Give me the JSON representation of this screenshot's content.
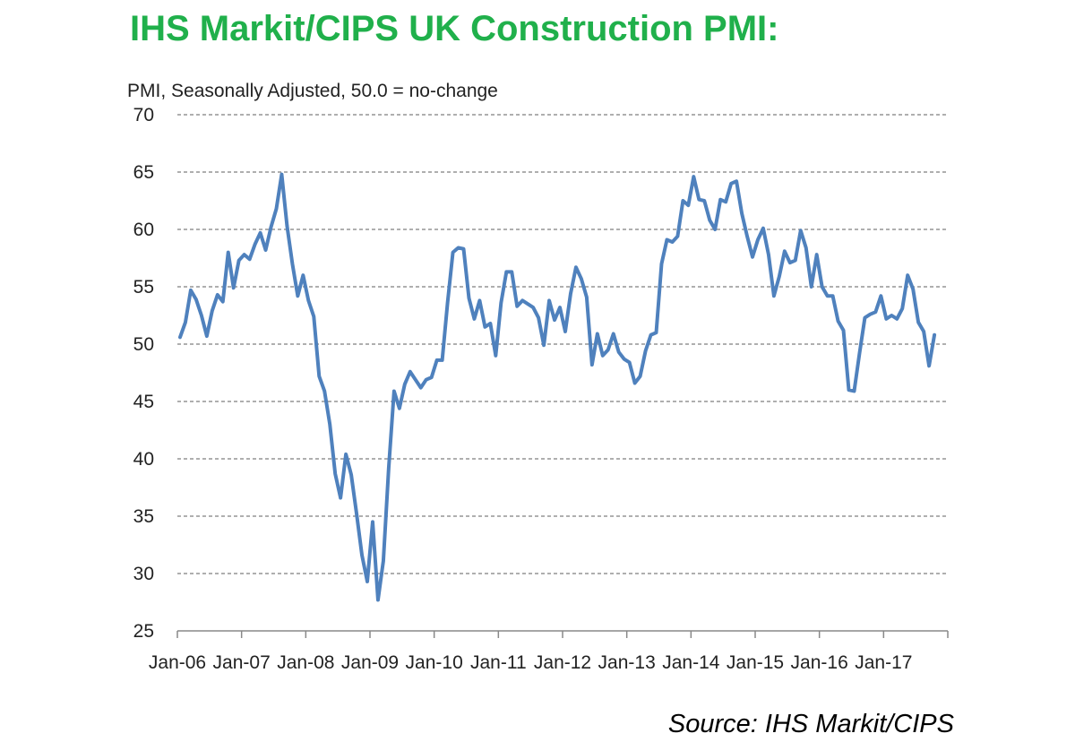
{
  "header": {
    "title": "IHS Markit/CIPS UK Construction PMI:"
  },
  "footer": {
    "source": "Source: IHS Markit/CIPS"
  },
  "colors": {
    "title": "#20b04b",
    "series": "#4f81bd",
    "grid": "#7f7f7f"
  },
  "chart_data": {
    "type": "line",
    "title": "IHS Markit/CIPS UK Construction PMI:",
    "ylabel": "PMI, Seasonally Adjusted, 50.0 = no-change",
    "xlabel": "",
    "ylim": [
      25,
      70
    ],
    "yticks": [
      25,
      30,
      35,
      40,
      45,
      50,
      55,
      60,
      65,
      70
    ],
    "xticks": [
      "Jan-06",
      "Jan-07",
      "Jan-08",
      "Jan-09",
      "Jan-10",
      "Jan-11",
      "Jan-12",
      "Jan-13",
      "Jan-14",
      "Jan-15",
      "Jan-16",
      "Jan-17"
    ],
    "grid": true,
    "start": "Jan-06",
    "frequency": "monthly",
    "series": [
      {
        "values": [
          50.6,
          51.9,
          54.7,
          53.9,
          52.5,
          50.7,
          52.9,
          54.3,
          53.7,
          58.0,
          54.9,
          57.3,
          57.8,
          57.4,
          58.7,
          59.7,
          58.2,
          60.2,
          61.8,
          64.8,
          60.3,
          57.0,
          54.2,
          56.0,
          53.8,
          52.4,
          47.2,
          45.9,
          43.0,
          38.7,
          36.6,
          40.4,
          38.6,
          35.2,
          31.6,
          29.3,
          34.5,
          27.7,
          31.1,
          39.2,
          45.9,
          44.4,
          46.5,
          47.6,
          46.9,
          46.2,
          46.9,
          47.1,
          48.6,
          48.6,
          53.6,
          58.0,
          58.4,
          58.3,
          54.0,
          52.2,
          53.8,
          51.5,
          51.8,
          49.0,
          53.6,
          56.3,
          56.3,
          53.3,
          53.8,
          53.5,
          53.2,
          52.3,
          49.9,
          53.8,
          52.1,
          53.2,
          51.1,
          54.4,
          56.7,
          55.7,
          54.1,
          48.2,
          50.9,
          49.0,
          49.5,
          50.9,
          49.3,
          48.7,
          48.4,
          46.6,
          47.2,
          49.4,
          50.8,
          51.0,
          57.0,
          59.1,
          58.9,
          59.4,
          62.5,
          62.1,
          64.6,
          62.6,
          62.5,
          60.8,
          60.0,
          62.6,
          62.4,
          64.0,
          64.2,
          61.4,
          59.4,
          57.6,
          59.1,
          60.1,
          57.8,
          54.2,
          55.9,
          58.1,
          57.1,
          57.3,
          59.9,
          58.4,
          55.0,
          57.8,
          55.0,
          54.2,
          54.2,
          52.0,
          51.2,
          46.0,
          45.9,
          49.2,
          52.3,
          52.6,
          52.8,
          54.2,
          52.2,
          52.5,
          52.2,
          53.1,
          56.0,
          54.8,
          51.9,
          51.1,
          48.1,
          50.8
        ]
      }
    ]
  }
}
